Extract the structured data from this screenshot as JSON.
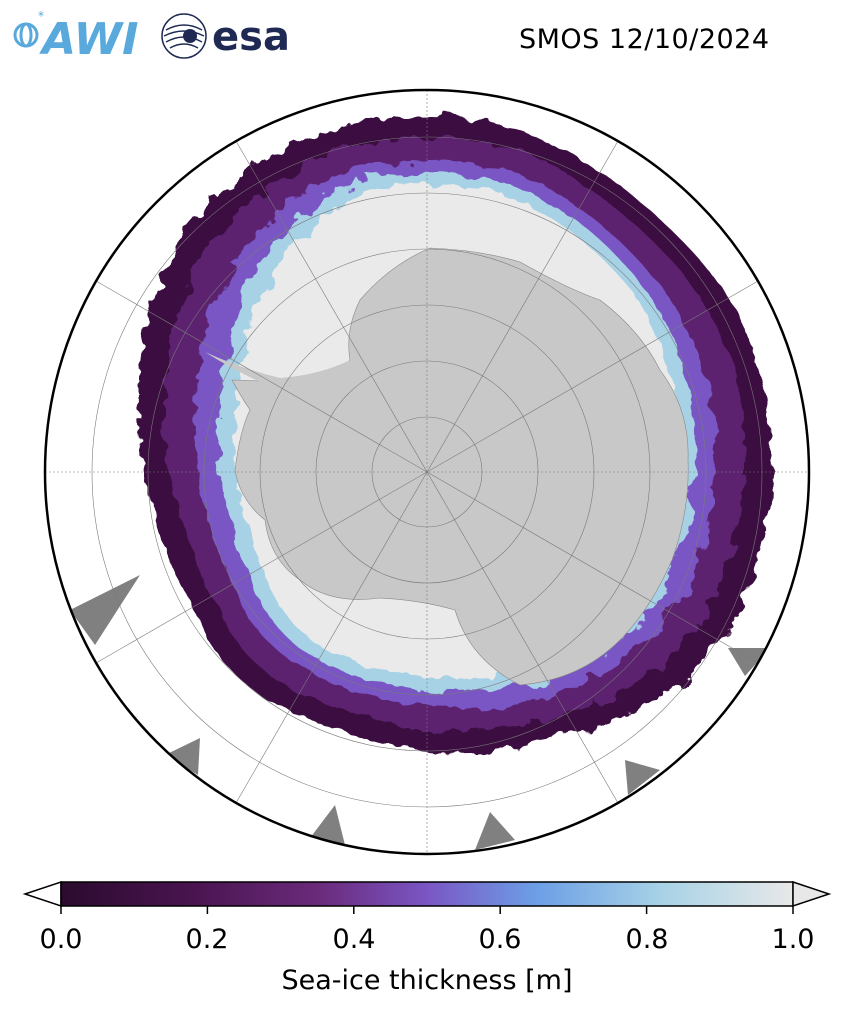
{
  "header": {
    "title": "SMOS 12/10/2024",
    "logo_awi_text": "AWI",
    "logo_esa_text": "esa"
  },
  "map": {
    "projection": "south-polar-stereographic",
    "land_color": "#c8c8c8",
    "ocean_color": "#ffffff",
    "missing_color": "#808080",
    "graticule": true
  },
  "colorbar": {
    "label": "Sea-ice thickness [m]",
    "vmin": 0.0,
    "vmax": 1.0,
    "extend": "both",
    "ticks": [
      "0.0",
      "0.2",
      "0.4",
      "0.6",
      "0.8",
      "1.0"
    ],
    "stops": [
      "#2b0b2e",
      "#4a1450",
      "#6a2a7a",
      "#7a56c4",
      "#6c9fe6",
      "#a7d2e6",
      "#e8e8e8"
    ]
  },
  "logos": {
    "awi_color": "#5aa9dd",
    "esa_color": "#1f2a54"
  }
}
